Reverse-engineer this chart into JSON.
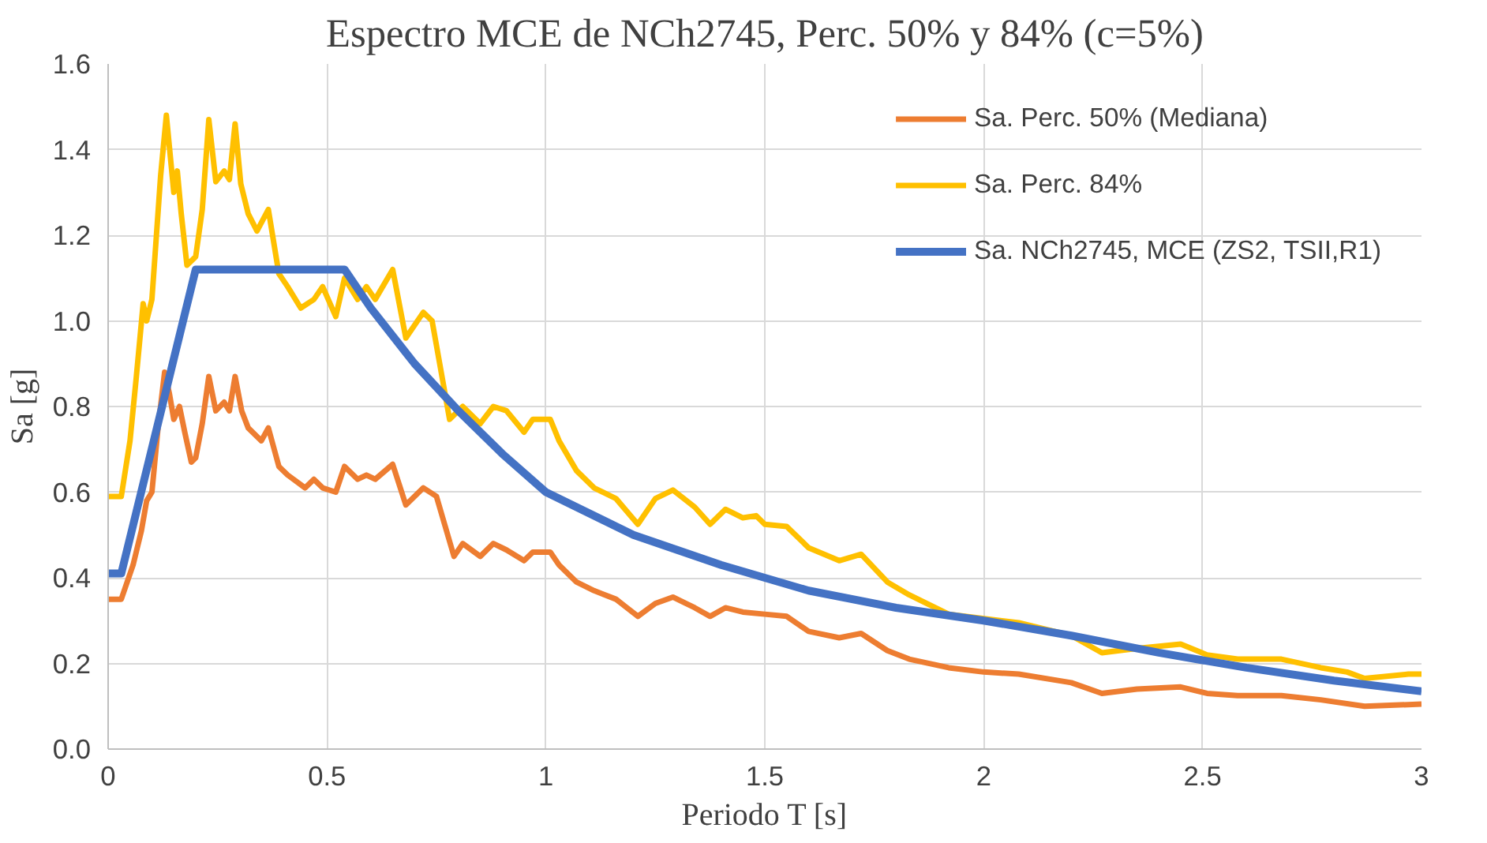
{
  "chart_data": {
    "type": "line",
    "title": "Espectro MCE de NCh2745, Perc. 50% y 84% (c=5%)",
    "xlabel": "Periodo T [s]",
    "ylabel": "Sa [g]",
    "xlim": [
      0,
      3
    ],
    "xticks": [
      0,
      0.5,
      1,
      1.5,
      2,
      2.5,
      3
    ],
    "ylim": [
      0,
      1.6
    ],
    "yticks": [
      {
        "value": 0,
        "label": "0.0"
      },
      0.2,
      0.4,
      0.6,
      0.8,
      {
        "value": 1,
        "label": "1.0"
      },
      1.2,
      1.4,
      1.6
    ],
    "grid": true,
    "legend": "top right",
    "line_style": "solid",
    "marker": "none",
    "series": [
      {
        "name": "Sa. Perc. 50% (Mediana)",
        "color": "#ed7d31",
        "x": [
          0,
          0.03,
          0.057,
          0.076,
          0.088,
          0.1,
          0.114,
          0.129,
          0.14,
          0.15,
          0.163,
          0.175,
          0.19,
          0.2,
          0.215,
          0.23,
          0.246,
          0.265,
          0.277,
          0.29,
          0.305,
          0.32,
          0.35,
          0.366,
          0.39,
          0.41,
          0.45,
          0.47,
          0.49,
          0.52,
          0.54,
          0.57,
          0.59,
          0.61,
          0.65,
          0.68,
          0.72,
          0.75,
          0.79,
          0.81,
          0.85,
          0.88,
          0.91,
          0.95,
          0.97,
          1.01,
          1.03,
          1.07,
          1.11,
          1.16,
          1.21,
          1.25,
          1.29,
          1.34,
          1.375,
          1.41,
          1.45,
          1.5,
          1.55,
          1.6,
          1.67,
          1.72,
          1.78,
          1.83,
          1.92,
          2.0,
          2.08,
          2.2,
          2.27,
          2.35,
          2.45,
          2.51,
          2.58,
          2.68,
          2.77,
          2.87,
          3.0
        ],
        "values": [
          0.35,
          0.35,
          0.43,
          0.51,
          0.58,
          0.6,
          0.75,
          0.88,
          0.83,
          0.77,
          0.8,
          0.74,
          0.67,
          0.68,
          0.76,
          0.87,
          0.79,
          0.81,
          0.79,
          0.87,
          0.79,
          0.75,
          0.72,
          0.75,
          0.66,
          0.64,
          0.61,
          0.63,
          0.61,
          0.6,
          0.66,
          0.63,
          0.64,
          0.63,
          0.665,
          0.57,
          0.61,
          0.59,
          0.45,
          0.48,
          0.45,
          0.48,
          0.465,
          0.44,
          0.46,
          0.46,
          0.43,
          0.39,
          0.37,
          0.35,
          0.31,
          0.34,
          0.355,
          0.33,
          0.31,
          0.33,
          0.32,
          0.315,
          0.31,
          0.275,
          0.26,
          0.27,
          0.23,
          0.21,
          0.19,
          0.18,
          0.175,
          0.155,
          0.13,
          0.14,
          0.145,
          0.13,
          0.125,
          0.125,
          0.115,
          0.1,
          0.105
        ]
      },
      {
        "name": "Sa. Perc. 84%",
        "color": "#ffc000",
        "x": [
          0,
          0.03,
          0.05,
          0.064,
          0.08,
          0.088,
          0.1,
          0.12,
          0.133,
          0.15,
          0.158,
          0.167,
          0.18,
          0.2,
          0.215,
          0.23,
          0.246,
          0.265,
          0.277,
          0.29,
          0.303,
          0.32,
          0.34,
          0.366,
          0.39,
          0.41,
          0.44,
          0.47,
          0.49,
          0.52,
          0.54,
          0.57,
          0.59,
          0.61,
          0.65,
          0.68,
          0.72,
          0.74,
          0.78,
          0.81,
          0.85,
          0.88,
          0.91,
          0.95,
          0.97,
          1.01,
          1.03,
          1.07,
          1.11,
          1.16,
          1.21,
          1.25,
          1.29,
          1.34,
          1.375,
          1.41,
          1.45,
          1.48,
          1.5,
          1.55,
          1.6,
          1.67,
          1.72,
          1.78,
          1.83,
          1.92,
          2.08,
          2.2,
          2.27,
          2.35,
          2.45,
          2.51,
          2.58,
          2.68,
          2.77,
          2.83,
          2.87,
          2.97,
          3.0
        ],
        "values": [
          0.59,
          0.59,
          0.72,
          0.865,
          1.04,
          1.0,
          1.05,
          1.34,
          1.48,
          1.3,
          1.35,
          1.25,
          1.13,
          1.15,
          1.26,
          1.47,
          1.325,
          1.35,
          1.33,
          1.46,
          1.32,
          1.25,
          1.21,
          1.26,
          1.11,
          1.08,
          1.03,
          1.05,
          1.08,
          1.01,
          1.1,
          1.05,
          1.08,
          1.05,
          1.12,
          0.96,
          1.02,
          1.0,
          0.77,
          0.8,
          0.76,
          0.8,
          0.79,
          0.74,
          0.77,
          0.77,
          0.72,
          0.65,
          0.61,
          0.585,
          0.525,
          0.585,
          0.605,
          0.565,
          0.525,
          0.56,
          0.54,
          0.545,
          0.525,
          0.52,
          0.47,
          0.44,
          0.455,
          0.39,
          0.36,
          0.315,
          0.295,
          0.265,
          0.225,
          0.235,
          0.245,
          0.22,
          0.21,
          0.21,
          0.19,
          0.18,
          0.165,
          0.175,
          0.175
        ]
      },
      {
        "name": "Sa. NCh2745, MCE (ZS2, TSII,R1)",
        "color": "#4472c4",
        "x": [
          0,
          0.03,
          0.2,
          0.54,
          0.6,
          0.7,
          0.8,
          0.9,
          1.0,
          1.2,
          1.4,
          1.6,
          1.8,
          2.0,
          2.2,
          2.4,
          2.6,
          2.8,
          3.0
        ],
        "values": [
          0.41,
          0.41,
          1.12,
          1.12,
          1.03,
          0.9,
          0.79,
          0.69,
          0.6,
          0.5,
          0.43,
          0.37,
          0.33,
          0.3,
          0.265,
          0.225,
          0.19,
          0.16,
          0.135
        ]
      }
    ]
  }
}
